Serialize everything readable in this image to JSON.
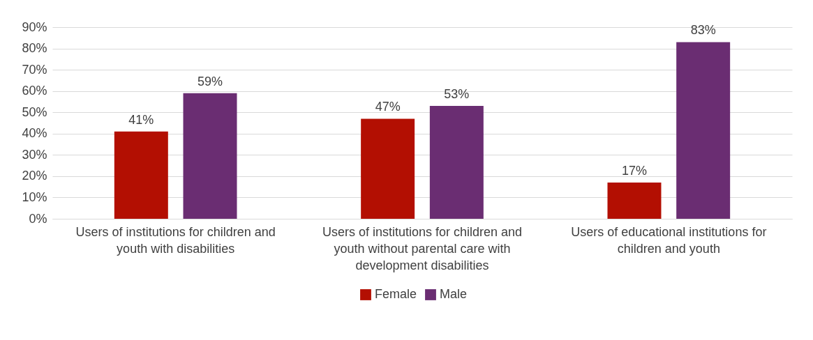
{
  "chart_data": {
    "type": "bar",
    "categories": [
      "Users of institutions for children and youth with disabilities",
      "Users of institutions for children and youth without parental care with development disabilities",
      "Users of educational institutions for children and youth"
    ],
    "series": [
      {
        "name": "Female",
        "color": "#b30f02",
        "values": [
          41,
          47,
          17
        ],
        "value_labels": [
          "41%",
          "47%",
          "17%"
        ]
      },
      {
        "name": "Male",
        "color": "#6a2d72",
        "values": [
          59,
          53,
          83
        ],
        "value_labels": [
          "59%",
          "53%",
          "83%"
        ]
      }
    ],
    "ylim": [
      0,
      90
    ],
    "yticks": [
      {
        "value": 0,
        "label": "0%"
      },
      {
        "value": 10,
        "label": "10%"
      },
      {
        "value": 20,
        "label": "20%"
      },
      {
        "value": 30,
        "label": "30%"
      },
      {
        "value": 40,
        "label": "40%"
      },
      {
        "value": 50,
        "label": "50%"
      },
      {
        "value": 60,
        "label": "60%"
      },
      {
        "value": 70,
        "label": "70%"
      },
      {
        "value": 80,
        "label": "80%"
      },
      {
        "value": 90,
        "label": "90%"
      }
    ],
    "grid": "y",
    "legend": "bottom"
  }
}
